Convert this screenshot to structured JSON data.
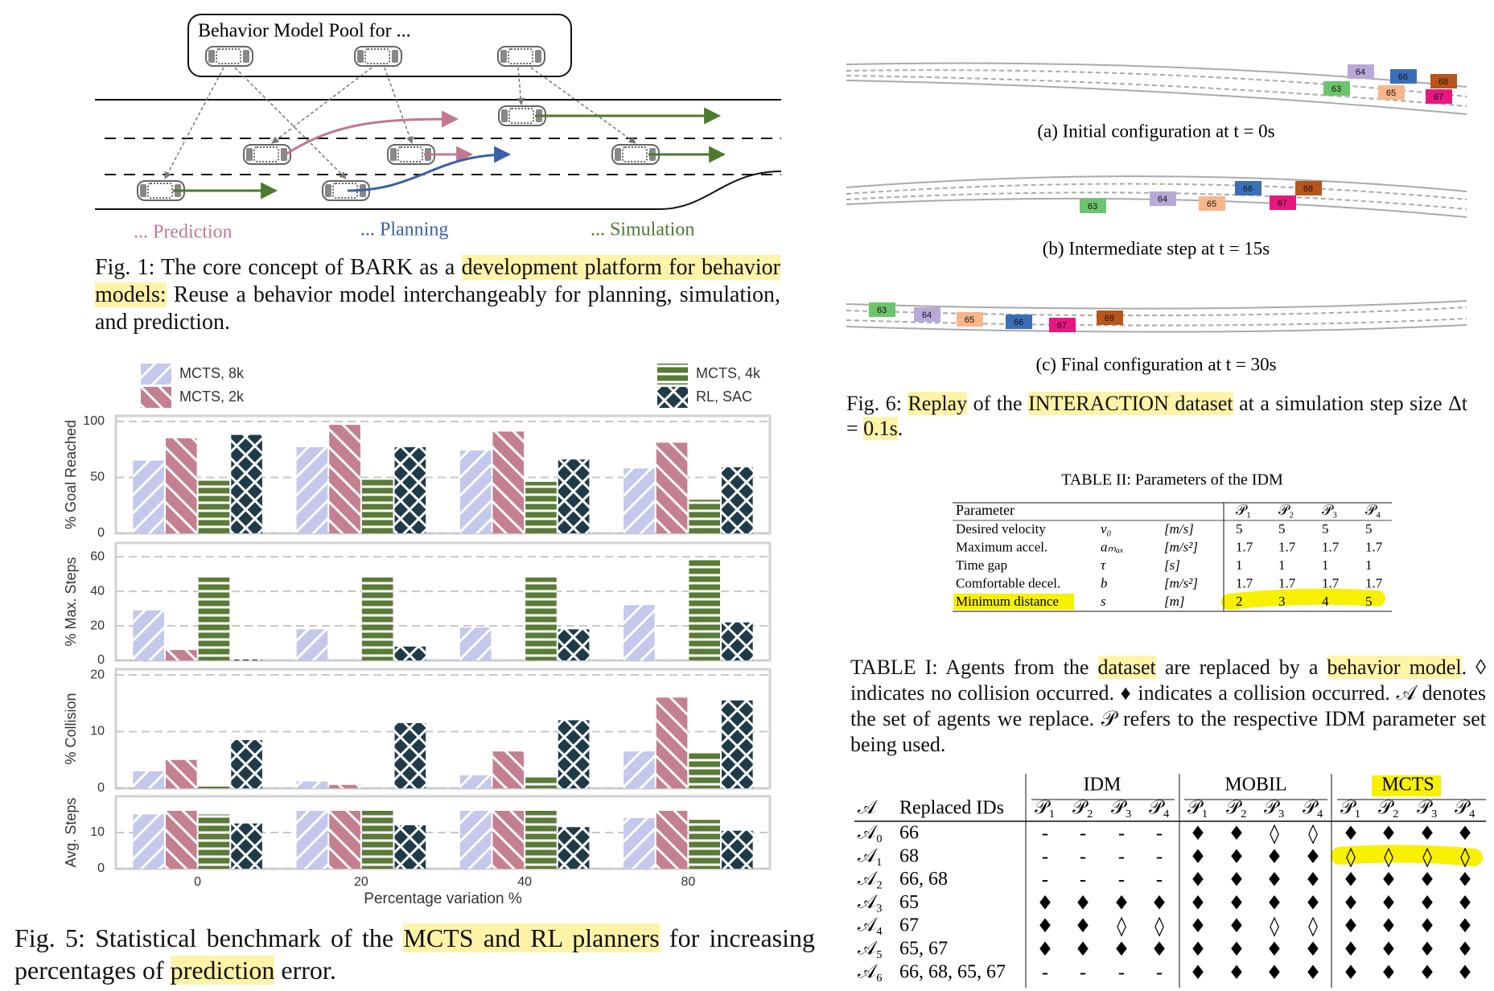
{
  "fig1": {
    "pool_title": "Behavior Model Pool for ...",
    "labels": [
      {
        "text": "... Prediction",
        "color": "#c07890"
      },
      {
        "text": "... Planning",
        "color": "#3a5fa8"
      },
      {
        "text": "... Simulation",
        "color": "#4e7a2e"
      }
    ],
    "caption": [
      {
        "text": "Fig. 1: The core concept of BARK as a "
      },
      {
        "text": "development platform for behavior models:",
        "highlight": true
      },
      {
        "text": " Reuse a behavior model interchangeably for planning, simulation, and prediction."
      }
    ]
  },
  "chart_data": {
    "type": "bar",
    "x_label": "Percentage variation %",
    "categories": [
      "0",
      "20",
      "40",
      "80"
    ],
    "series": [
      {
        "name": "MCTS, 8k",
        "color": "#c3c8ec",
        "hatch": "/"
      },
      {
        "name": "MCTS, 2k",
        "color": "#c4808f",
        "hatch": "\\"
      },
      {
        "name": "MCTS, 4k",
        "color": "#5b7b38",
        "hatch": "-"
      },
      {
        "name": "RL, SAC",
        "color": "#1f3b4a",
        "hatch": "x"
      }
    ],
    "panels": [
      {
        "y_label": "% Goal Reached",
        "ylim": [
          0,
          105
        ],
        "yticks": [
          0,
          50,
          100
        ],
        "values": [
          [
            65,
            77,
            74,
            58
          ],
          [
            85,
            97,
            91,
            81
          ],
          [
            47,
            49,
            46,
            30
          ],
          [
            88,
            77,
            66,
            59
          ]
        ]
      },
      {
        "y_label": "% Max. Steps",
        "ylim": [
          0,
          68
        ],
        "yticks": [
          0,
          20,
          40,
          60
        ],
        "values": [
          [
            29,
            18,
            19,
            32
          ],
          [
            6,
            0,
            0,
            0
          ],
          [
            48,
            48,
            48,
            59
          ],
          [
            0.5,
            8,
            18,
            22
          ]
        ]
      },
      {
        "y_label": "% Collision",
        "ylim": [
          0,
          21
        ],
        "yticks": [
          0,
          10,
          20
        ],
        "values": [
          [
            3,
            1.2,
            2.3,
            6.5
          ],
          [
            5,
            0.6,
            6.5,
            16
          ],
          [
            0.3,
            0,
            2,
            6.5
          ],
          [
            8.5,
            11.5,
            12,
            15.5
          ]
        ]
      },
      {
        "y_label": "Avg. Steps",
        "ylim": [
          0,
          20
        ],
        "yticks": [
          0,
          10
        ],
        "values": [
          [
            15,
            16,
            16,
            14
          ],
          [
            16,
            16,
            16,
            16
          ],
          [
            15,
            16,
            16,
            13.5
          ],
          [
            12.5,
            12,
            11.5,
            10.5
          ]
        ]
      }
    ]
  },
  "fig5": {
    "caption": [
      {
        "text": "Fig. 5: Statistical benchmark of the "
      },
      {
        "text": "MCTS and RL planners",
        "highlight": true
      },
      {
        "text": " for increasing percentages of "
      },
      {
        "text": "prediction",
        "highlight": true
      },
      {
        "text": " error."
      }
    ]
  },
  "fig6": {
    "panels": [
      {
        "caption": "(a) Initial configuration at t = 0s",
        "cars": [
          {
            "id": "64",
            "color": "#b9a9d8"
          },
          {
            "id": "66",
            "color": "#3a6fb8"
          },
          {
            "id": "68",
            "color": "#b8551a"
          },
          {
            "id": "63",
            "color": "#6cc46c"
          },
          {
            "id": "65",
            "color": "#f7b58a"
          },
          {
            "id": "67",
            "color": "#e8177f"
          }
        ]
      },
      {
        "caption": "(b) Intermediate step at t = 15s",
        "cars": [
          {
            "id": "63",
            "color": "#6cc46c"
          },
          {
            "id": "64",
            "color": "#b9a9d8"
          },
          {
            "id": "65",
            "color": "#f7b58a"
          },
          {
            "id": "66",
            "color": "#3a6fb8"
          },
          {
            "id": "67",
            "color": "#e8177f"
          },
          {
            "id": "68",
            "color": "#b8551a"
          }
        ]
      },
      {
        "caption": "(c) Final configuration at t = 30s",
        "cars": [
          {
            "id": "63",
            "color": "#6cc46c"
          },
          {
            "id": "64",
            "color": "#b9a9d8"
          },
          {
            "id": "65",
            "color": "#f7b58a"
          },
          {
            "id": "66",
            "color": "#3a6fb8"
          },
          {
            "id": "67",
            "color": "#e8177f"
          },
          {
            "id": "69",
            "color": "#b8551a"
          }
        ]
      }
    ],
    "caption": [
      {
        "text": "Fig. 6: "
      },
      {
        "text": "Replay",
        "highlight": true
      },
      {
        "text": " of the "
      },
      {
        "text": "INTERACTION dataset",
        "highlight": true
      },
      {
        "text": " at a simulation step size Δt = "
      },
      {
        "text": "0.1s",
        "highlight": true
      },
      {
        "text": "."
      }
    ]
  },
  "table2": {
    "title": "TABLE II: Parameters of the IDM",
    "header": [
      "Parameter",
      "𝒫₁",
      "𝒫₂",
      "𝒫₃",
      "𝒫₄"
    ],
    "rows": [
      [
        "Desired velocity",
        "v₀",
        "[m/s]",
        5,
        5,
        5,
        5
      ],
      [
        "Maximum accel.",
        "aₘₐₓ",
        "[m/s²]",
        1.7,
        1.7,
        1.7,
        1.7
      ],
      [
        "Time gap",
        "τ",
        "[s]",
        1,
        1,
        1,
        1
      ],
      [
        "Comfortable decel.",
        "b",
        "[m/s²]",
        1.7,
        1.7,
        1.7,
        1.7
      ],
      [
        "Minimum distance",
        "s",
        "[m]",
        2,
        3,
        4,
        5
      ]
    ]
  },
  "table1": {
    "caption": [
      {
        "text": "TABLE I: Agents from the "
      },
      {
        "text": "dataset",
        "highlight": true
      },
      {
        "text": " are replaced by a "
      },
      {
        "text": "behavior model",
        "highlight": true
      },
      {
        "text": ". ◊ indicates no collision occurred. ♦ indicates a collision occurred. 𝒜 denotes the set of agents we replace. 𝒫 refers to the respective IDM parameter set being used."
      }
    ],
    "groups": [
      "IDM",
      "MOBIL",
      "MCTS"
    ],
    "header": [
      "𝒜",
      "Replaced IDs"
    ],
    "params": [
      "𝒫₁",
      "𝒫₂",
      "𝒫₃",
      "𝒫₄"
    ],
    "rows": [
      {
        "agent": "𝒜₀",
        "ids": "66",
        "cells": [
          "-",
          "-",
          "-",
          "-",
          "♦",
          "♦",
          "◊",
          "◊",
          "♦",
          "♦",
          "♦",
          "♦"
        ]
      },
      {
        "agent": "𝒜₁",
        "ids": "68",
        "cells": [
          "-",
          "-",
          "-",
          "-",
          "♦",
          "♦",
          "♦",
          "♦",
          "◊",
          "◊",
          "◊",
          "◊"
        ]
      },
      {
        "agent": "𝒜₂",
        "ids": "66, 68",
        "cells": [
          "-",
          "-",
          "-",
          "-",
          "♦",
          "♦",
          "♦",
          "♦",
          "♦",
          "♦",
          "♦",
          "♦"
        ]
      },
      {
        "agent": "𝒜₃",
        "ids": "65",
        "cells": [
          "♦",
          "♦",
          "♦",
          "♦",
          "♦",
          "♦",
          "♦",
          "♦",
          "♦",
          "♦",
          "♦",
          "♦"
        ]
      },
      {
        "agent": "𝒜₄",
        "ids": "67",
        "cells": [
          "♦",
          "♦",
          "◊",
          "◊",
          "♦",
          "♦",
          "◊",
          "◊",
          "♦",
          "♦",
          "♦",
          "♦"
        ]
      },
      {
        "agent": "𝒜₅",
        "ids": "65, 67",
        "cells": [
          "♦",
          "♦",
          "♦",
          "♦",
          "♦",
          "♦",
          "♦",
          "♦",
          "♦",
          "♦",
          "♦",
          "♦"
        ]
      },
      {
        "agent": "𝒜₆",
        "ids": "66, 68, 65, 67",
        "cells": [
          "-",
          "-",
          "-",
          "-",
          "♦",
          "♦",
          "♦",
          "♦",
          "♦",
          "♦",
          "♦",
          "♦"
        ]
      }
    ]
  }
}
